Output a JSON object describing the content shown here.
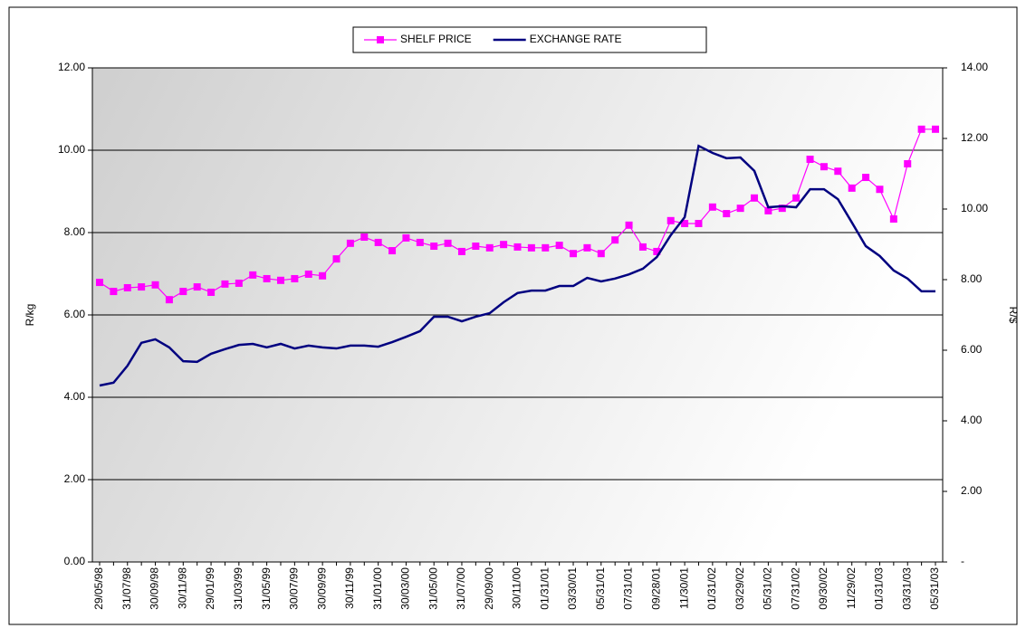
{
  "chart_data": {
    "type": "line",
    "y_label": "R/kg",
    "y2_label": "R/$",
    "categories": [
      "29/05/98",
      null,
      "31/07/98",
      null,
      "30/09/98",
      null,
      "30/11/98",
      null,
      "29/01/99",
      null,
      "31/03/99",
      null,
      "31/05/99",
      null,
      "30/07/99",
      null,
      "30/09/99",
      null,
      "30/11/99",
      null,
      "31/01/00",
      null,
      "30/03/00",
      null,
      "31/05/00",
      null,
      "31/07/00",
      null,
      "29/09/00",
      null,
      "30/11/00",
      null,
      "01/31/01",
      null,
      "03/30/01",
      null,
      "05/31/01",
      null,
      "07/31/01",
      null,
      "09/28/01",
      null,
      "11/30/01",
      null,
      "01/31/02",
      null,
      "03/29/02",
      null,
      "05/31/02",
      null,
      "07/31/02",
      null,
      "09/30/02",
      null,
      "11/29/02",
      null,
      "01/31/03",
      null,
      "03/31/03",
      null,
      "05/31/03"
    ],
    "series": [
      {
        "name": "SHELF PRICE",
        "color": "#ff00ff",
        "marker": "square",
        "axis": "y",
        "values": [
          6.79,
          6.57,
          6.66,
          6.68,
          6.73,
          6.37,
          6.57,
          6.68,
          6.55,
          6.75,
          6.77,
          6.97,
          6.88,
          6.84,
          6.88,
          6.99,
          6.95,
          7.36,
          7.74,
          7.89,
          7.76,
          7.56,
          7.87,
          7.76,
          7.67,
          7.74,
          7.54,
          7.67,
          7.63,
          7.71,
          7.65,
          7.63,
          7.63,
          7.69,
          7.49,
          7.63,
          7.49,
          7.82,
          8.18,
          7.65,
          7.54,
          8.29,
          8.22,
          8.22,
          8.62,
          8.46,
          8.59,
          8.84,
          8.53,
          8.59,
          8.84,
          9.78,
          9.6,
          9.49,
          9.08,
          9.34,
          9.05,
          8.33,
          9.67,
          10.51,
          10.51
        ]
      },
      {
        "name": "EXCHANGE RATE",
        "color": "#000080",
        "marker": "none",
        "axis": "y2",
        "values": [
          5.0,
          5.08,
          5.56,
          6.21,
          6.31,
          6.08,
          5.69,
          5.67,
          5.9,
          6.03,
          6.15,
          6.18,
          6.08,
          6.18,
          6.05,
          6.13,
          6.08,
          6.05,
          6.13,
          6.13,
          6.1,
          6.23,
          6.38,
          6.54,
          6.95,
          6.95,
          6.82,
          6.95,
          7.05,
          7.36,
          7.62,
          7.69,
          7.69,
          7.82,
          7.82,
          8.05,
          7.95,
          8.03,
          8.15,
          8.31,
          8.64,
          9.26,
          9.77,
          11.79,
          11.59,
          11.44,
          11.46,
          11.08,
          10.05,
          10.08,
          10.05,
          10.56,
          10.56,
          10.28,
          9.62,
          8.95,
          8.67,
          8.26,
          8.03,
          7.67,
          7.67
        ]
      }
    ],
    "ylim": [
      0,
      12
    ],
    "yticks": [
      {
        "value": 0,
        "label": "0.00"
      },
      {
        "value": 2,
        "label": "2.00"
      },
      {
        "value": 4,
        "label": "4.00"
      },
      {
        "value": 6,
        "label": "6.00"
      },
      {
        "value": 8,
        "label": "8.00"
      },
      {
        "value": 10,
        "label": "10.00"
      },
      {
        "value": 12,
        "label": "12.00"
      }
    ],
    "y2lim": [
      0,
      14
    ],
    "y2ticks": [
      {
        "value": 0,
        "label": "-"
      },
      {
        "value": 2,
        "label": "2.00"
      },
      {
        "value": 4,
        "label": "4.00"
      },
      {
        "value": 6,
        "label": "6.00"
      },
      {
        "value": 8,
        "label": "8.00"
      },
      {
        "value": 10,
        "label": "10.00"
      },
      {
        "value": 12,
        "label": "12.00"
      },
      {
        "value": 14,
        "label": "14.00"
      }
    ],
    "grid": true,
    "legend": "top"
  }
}
